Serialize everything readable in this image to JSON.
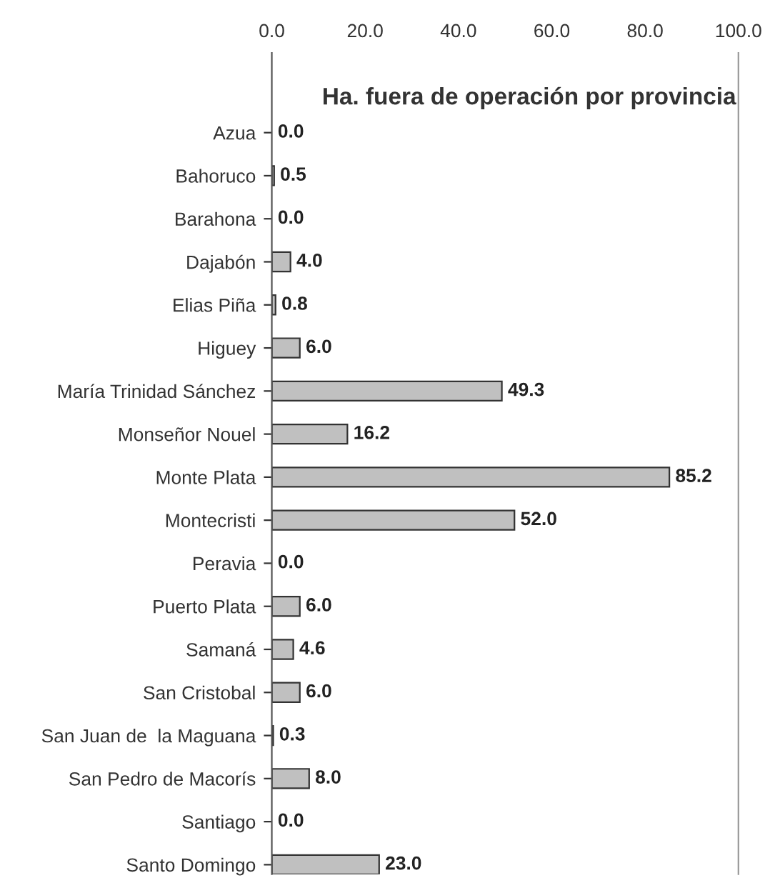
{
  "chart_data": {
    "type": "bar",
    "orientation": "horizontal",
    "title": "Ha. fuera de operación por provincia",
    "categories": [
      "Azua",
      "Bahoruco",
      "Barahona",
      "Dajabón",
      "Elias Piña",
      "Higuey",
      "María Trinidad Sánchez",
      "Monseñor Nouel",
      "Monte Plata",
      "Montecristi",
      "Peravia",
      "Puerto Plata",
      "Samaná",
      "San Cristobal",
      "San Juan de  la Maguana",
      "San Pedro de Macorís",
      "Santiago",
      "Santo Domingo"
    ],
    "values": [
      0.0,
      0.5,
      0.0,
      4.0,
      0.8,
      6.0,
      49.3,
      16.2,
      85.2,
      52.0,
      0.0,
      6.0,
      4.6,
      6.0,
      0.3,
      8.0,
      0.0,
      23.0
    ],
    "value_labels": [
      "0.0",
      "0.5",
      "0.0",
      "4.0",
      "0.8",
      "6.0",
      "49.3",
      "16.2",
      "85.2",
      "52.0",
      "0.0",
      "6.0",
      "4.6",
      "6.0",
      "0.3",
      "8.0",
      "0.0",
      "23.0"
    ],
    "color": "#c0c0c0",
    "xlim": [
      0,
      100
    ],
    "xticks": [
      {
        "value": 0,
        "label": "0.0"
      },
      {
        "value": 20,
        "label": "20.0"
      },
      {
        "value": 40,
        "label": "40.0"
      },
      {
        "value": 60,
        "label": "60.0"
      },
      {
        "value": 80,
        "label": "80.0"
      },
      {
        "value": 100,
        "label": "100.0"
      }
    ],
    "grid": false
  }
}
